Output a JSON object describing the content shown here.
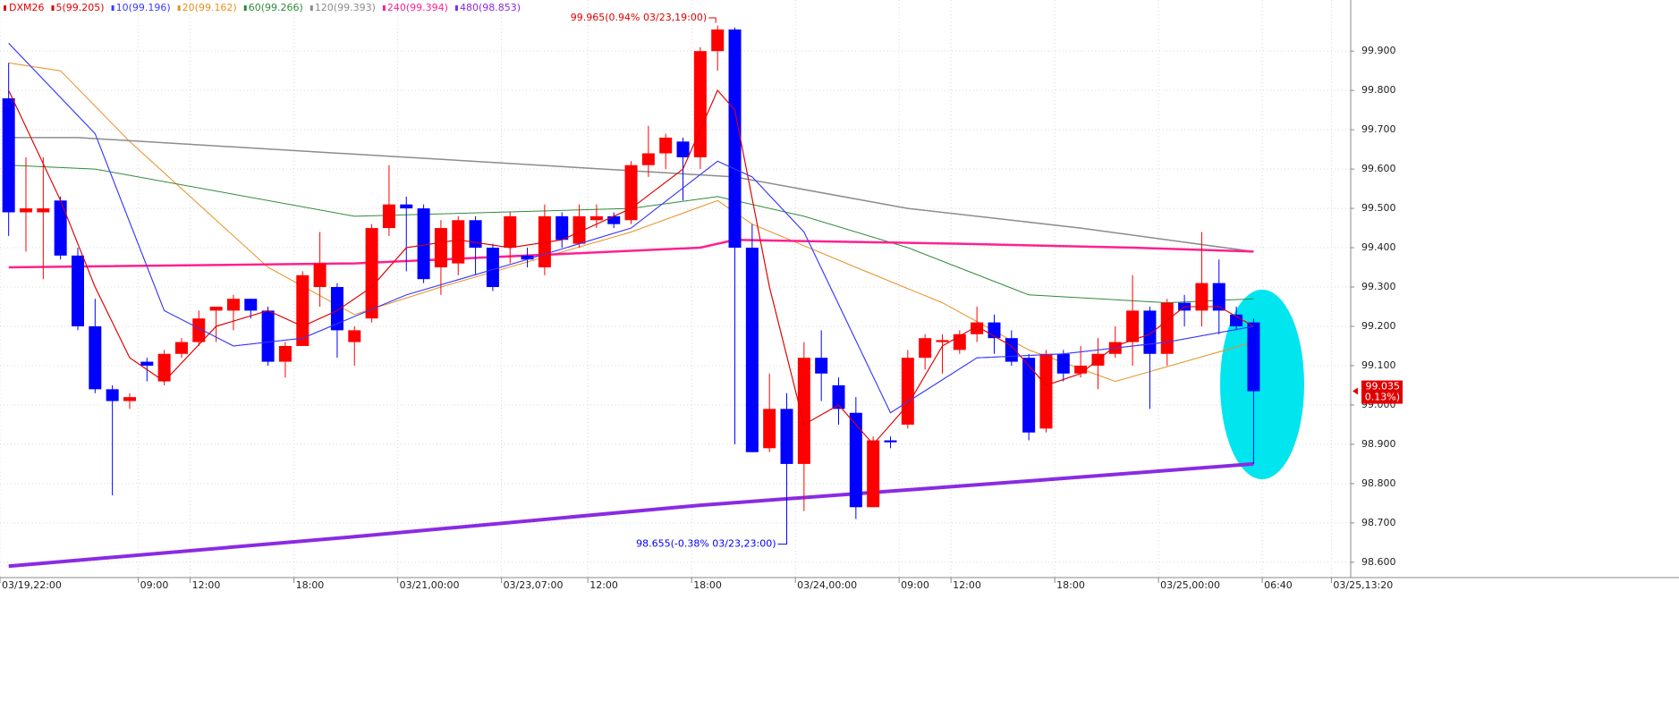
{
  "chart_data": {
    "type": "candlestick",
    "symbol": "DXM26",
    "categories": [
      "03/19,22:00",
      null,
      null,
      null,
      null,
      null,
      null,
      null,
      "09:00",
      null,
      null,
      "12:00",
      null,
      null,
      null,
      null,
      null,
      "18:00",
      null,
      null,
      null,
      null,
      null,
      "03/21,00:00",
      null,
      null,
      null,
      null,
      null,
      "03/23,07:00",
      null,
      null,
      null,
      null,
      "12:00",
      null,
      null,
      null,
      null,
      null,
      "18:00",
      null,
      null,
      null,
      null,
      null,
      "03/24,00:00",
      null,
      null,
      null,
      null,
      null,
      "09:00",
      null,
      null,
      "12:00",
      null,
      null,
      null,
      null,
      null,
      "18:00",
      null,
      null,
      null,
      null,
      null,
      "03/25,00:00",
      null,
      null,
      null,
      null,
      null,
      "06:40",
      null,
      null,
      null,
      "03/25,13:20"
    ],
    "open": [
      99.78,
      99.49,
      99.49,
      99.52,
      99.38,
      99.2,
      99.04,
      99.01,
      99.11,
      99.06,
      99.13,
      99.16,
      99.24,
      99.24,
      99.27,
      99.24,
      99.11,
      99.15,
      99.3,
      99.3,
      99.16,
      99.22,
      99.45,
      99.51,
      99.5,
      99.35,
      99.36,
      99.47,
      99.4,
      99.4,
      99.38,
      99.35,
      99.48,
      99.41,
      99.47,
      99.48,
      99.47,
      99.61,
      99.64,
      99.67,
      99.63,
      99.9,
      99.955,
      99.4,
      98.89,
      98.99,
      98.85,
      99.12,
      99.05,
      98.98,
      98.74,
      98.91,
      98.95,
      99.12,
      99.16,
      99.14,
      99.18,
      99.21,
      99.17,
      99.12,
      98.94,
      99.13,
      99.08,
      99.1,
      99.13,
      99.16,
      99.24,
      99.13,
      99.26,
      99.24,
      99.31,
      99.23,
      99.21,
      null,
      null,
      null,
      null,
      null
    ],
    "high": [
      99.87,
      99.63,
      99.63,
      99.53,
      99.4,
      99.27,
      99.05,
      99.03,
      99.12,
      99.14,
      99.17,
      99.24,
      99.25,
      99.28,
      99.27,
      99.25,
      99.16,
      99.34,
      99.44,
      99.31,
      99.2,
      99.46,
      99.61,
      99.53,
      99.51,
      99.47,
      99.48,
      99.48,
      99.41,
      99.49,
      99.4,
      99.51,
      99.49,
      99.51,
      99.51,
      99.49,
      99.62,
      99.71,
      99.69,
      99.68,
      99.91,
      99.965,
      99.96,
      99.46,
      99.08,
      99.03,
      99.16,
      99.19,
      99.07,
      99.02,
      98.92,
      98.92,
      99.14,
      99.18,
      99.18,
      99.19,
      99.25,
      99.23,
      99.19,
      99.13,
      99.14,
      99.14,
      99.15,
      99.17,
      99.2,
      99.33,
      99.25,
      99.27,
      99.28,
      99.44,
      99.37,
      99.25,
      99.22,
      null,
      null,
      null,
      null,
      null
    ],
    "low": [
      99.43,
      99.39,
      99.32,
      99.37,
      99.19,
      99.03,
      98.77,
      98.99,
      99.06,
      99.05,
      99.12,
      99.15,
      99.16,
      99.19,
      99.22,
      99.1,
      99.07,
      99.15,
      99.25,
      99.12,
      99.1,
      99.21,
      99.43,
      99.34,
      99.31,
      99.28,
      99.33,
      99.33,
      99.29,
      99.36,
      99.35,
      99.33,
      99.4,
      99.4,
      99.45,
      99.45,
      99.46,
      99.58,
      99.6,
      99.52,
      99.6,
      99.85,
      98.9,
      98.88,
      98.88,
      98.655,
      98.73,
      99.01,
      98.95,
      98.71,
      98.74,
      98.89,
      98.94,
      99.09,
      99.08,
      99.13,
      99.16,
      99.13,
      99.1,
      98.91,
      98.93,
      99.06,
      99.07,
      99.04,
      99.12,
      99.1,
      98.99,
      99.1,
      99.2,
      99.2,
      99.18,
      99.19,
      98.85,
      null,
      null,
      null,
      null,
      null
    ],
    "close": [
      99.49,
      99.5,
      99.5,
      99.38,
      99.2,
      99.04,
      99.01,
      99.02,
      99.1,
      99.13,
      99.16,
      99.22,
      99.25,
      99.27,
      99.24,
      99.11,
      99.15,
      99.33,
      99.36,
      99.19,
      99.19,
      99.45,
      99.51,
      99.5,
      99.32,
      99.45,
      99.47,
      99.4,
      99.3,
      99.48,
      99.37,
      99.48,
      99.42,
      99.48,
      99.48,
      99.46,
      99.61,
      99.64,
      99.68,
      99.63,
      99.9,
      99.955,
      99.4,
      98.88,
      98.99,
      98.85,
      99.12,
      99.08,
      98.99,
      98.74,
      98.91,
      98.905,
      99.12,
      99.17,
      99.165,
      99.18,
      99.21,
      99.17,
      99.11,
      98.93,
      99.13,
      99.08,
      99.1,
      99.13,
      99.16,
      99.24,
      99.13,
      99.26,
      99.24,
      99.31,
      99.24,
      99.2,
      99.035,
      null,
      null,
      null,
      null,
      null
    ],
    "up_color": "#ff0000",
    "down_color": "#0000ff",
    "series": [
      {
        "name": "5(99.205)",
        "color": "#e00000",
        "width": 1,
        "x": [
          0,
          3,
          5,
          7,
          9,
          12,
          15,
          17,
          19,
          21,
          23,
          26,
          29,
          32,
          36,
          39,
          41,
          42,
          44,
          46,
          48,
          50,
          52,
          54,
          56,
          58,
          60,
          62,
          64,
          66,
          68,
          70,
          72
        ],
        "values": [
          99.8,
          99.52,
          99.3,
          99.12,
          99.06,
          99.2,
          99.24,
          99.2,
          99.24,
          99.3,
          99.4,
          99.42,
          99.4,
          99.42,
          99.5,
          99.6,
          99.8,
          99.75,
          99.3,
          98.95,
          99.0,
          98.9,
          99.0,
          99.15,
          99.2,
          99.15,
          99.05,
          99.08,
          99.15,
          99.18,
          99.25,
          99.25,
          99.2
        ]
      },
      {
        "name": "10(99.196)",
        "color": "#3a3aff",
        "width": 1,
        "x": [
          0,
          5,
          9,
          13,
          17,
          23,
          30,
          36,
          41,
          43,
          46,
          51,
          56,
          61,
          67,
          72
        ],
        "values": [
          99.92,
          99.69,
          99.24,
          99.15,
          99.17,
          99.28,
          99.37,
          99.45,
          99.62,
          99.58,
          99.44,
          98.98,
          99.12,
          99.13,
          99.16,
          99.2
        ]
      },
      {
        "name": "20(99.162)",
        "color": "#e89020",
        "width": 1,
        "x": [
          0,
          3,
          7,
          15,
          20,
          25,
          36,
          41,
          43,
          49,
          54,
          59,
          64,
          72
        ],
        "values": [
          99.87,
          99.85,
          99.67,
          99.35,
          99.23,
          99.3,
          99.44,
          99.52,
          99.46,
          99.35,
          99.26,
          99.14,
          99.06,
          99.16
        ]
      },
      {
        "name": "60(99.266)",
        "color": "#2e8b3a",
        "width": 1,
        "x": [
          0,
          5,
          20,
          36,
          41,
          46,
          52,
          59,
          67,
          72
        ],
        "values": [
          99.61,
          99.6,
          99.48,
          99.5,
          99.53,
          99.48,
          99.4,
          99.28,
          99.26,
          99.27
        ]
      },
      {
        "name": "120(99.393)",
        "color": "#8c8c8c",
        "width": 1.5,
        "x": [
          0,
          4,
          23,
          42,
          52,
          62,
          72
        ],
        "values": [
          99.68,
          99.68,
          99.63,
          99.58,
          99.5,
          99.45,
          99.39
        ]
      },
      {
        "name": "240(99.394)",
        "color": "#ff2090",
        "width": 2.5,
        "x": [
          0,
          20,
          40,
          42,
          55,
          65,
          72
        ],
        "values": [
          99.35,
          99.36,
          99.4,
          99.42,
          99.41,
          99.4,
          99.39
        ]
      },
      {
        "name": "480(98.853)",
        "color": "#8a2be2",
        "width": 4,
        "x": [
          0,
          20,
          40,
          60,
          72
        ],
        "values": [
          98.59,
          98.665,
          98.745,
          98.81,
          98.85
        ]
      }
    ],
    "ylim": [
      98.561,
      100.03
    ],
    "yticks": [
      {
        "value": 99.9,
        "label": "99.900"
      },
      {
        "value": 99.8,
        "label": "99.800"
      },
      {
        "value": 99.7,
        "label": "99.700"
      },
      {
        "value": 99.6,
        "label": "99.600"
      },
      {
        "value": 99.5,
        "label": "99.500"
      },
      {
        "value": 99.4,
        "label": "99.400"
      },
      {
        "value": 99.3,
        "label": "99.300"
      },
      {
        "value": 99.2,
        "label": "99.200"
      },
      {
        "value": 99.1,
        "label": "99.100"
      },
      {
        "value": 99.0,
        "label": "99.000"
      },
      {
        "value": 98.9,
        "label": "98.900"
      },
      {
        "value": 98.8,
        "label": "98.800"
      },
      {
        "value": 98.7,
        "label": "98.700"
      },
      {
        "value": 98.6,
        "label": "98.600"
      }
    ],
    "grid": true,
    "high_annotation": {
      "value": 99.965,
      "label": "99.965(0.94% 03/23,19:00)"
    },
    "low_annotation": {
      "value": 98.655,
      "label": "98.655(-0.38% 03/23,23:00)"
    },
    "last_price": {
      "value": 99.035,
      "label": "99.035",
      "change": "( 0.13%)"
    }
  }
}
